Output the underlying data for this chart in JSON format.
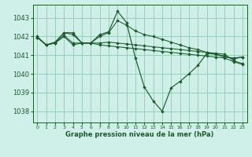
{
  "bg_color": "#cef0e8",
  "grid_color": "#99ccbb",
  "line_color": "#1a5c2a",
  "marker_color": "#1a5c2a",
  "xlabel": "Graphe pression niveau de la mer (hPa)",
  "xlabel_color": "#1a5c2a",
  "ylabel_ticks": [
    1038,
    1039,
    1040,
    1041,
    1042,
    1043
  ],
  "xlim": [
    -0.5,
    23.5
  ],
  "ylim": [
    1037.4,
    1043.7
  ],
  "series": [
    [
      1042.0,
      1041.55,
      1041.7,
      1042.2,
      1042.2,
      1041.65,
      1041.65,
      1042.1,
      1042.25,
      1043.35,
      1042.75,
      1040.85,
      1039.3,
      1038.55,
      1038.0,
      1039.25,
      1039.6,
      1040.0,
      1040.45,
      1041.1,
      1041.05,
      1040.9,
      1040.85,
      1040.9
    ],
    [
      1041.95,
      1041.55,
      1041.65,
      1042.2,
      1042.1,
      1041.65,
      1041.65,
      1042.0,
      1042.2,
      1042.85,
      1042.6,
      1042.3,
      1042.1,
      1042.0,
      1041.85,
      1041.7,
      1041.55,
      1041.4,
      1041.3,
      1041.15,
      1041.05,
      1040.95,
      1040.8,
      1040.9
    ],
    [
      1041.95,
      1041.55,
      1041.65,
      1042.05,
      1041.65,
      1041.65,
      1041.65,
      1041.65,
      1041.7,
      1041.65,
      1041.6,
      1041.55,
      1041.5,
      1041.45,
      1041.4,
      1041.35,
      1041.3,
      1041.25,
      1041.2,
      1041.15,
      1041.1,
      1041.05,
      1040.7,
      1040.55
    ],
    [
      1041.95,
      1041.55,
      1041.65,
      1042.0,
      1041.55,
      1041.65,
      1041.65,
      1041.55,
      1041.5,
      1041.45,
      1041.4,
      1041.35,
      1041.3,
      1041.25,
      1041.2,
      1041.15,
      1041.1,
      1041.05,
      1041.0,
      1040.95,
      1040.9,
      1040.85,
      1040.65,
      1040.5
    ]
  ]
}
